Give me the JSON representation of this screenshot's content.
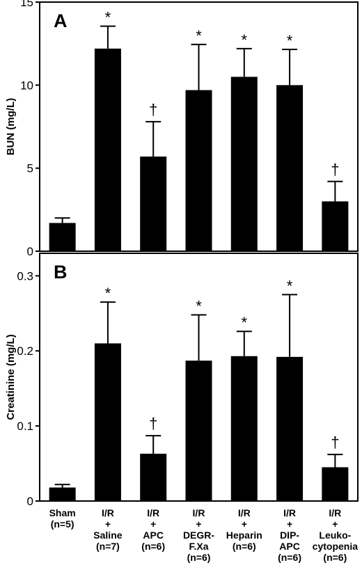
{
  "chart_data": [
    {
      "type": "bar",
      "panel": "A",
      "ylabel": "BUN (mg/L)",
      "ylim": [
        0,
        15
      ],
      "yticks": [
        0,
        5,
        10,
        15
      ],
      "categories": [
        "Sham (n=5)",
        "I/R + Saline (n=7)",
        "I/R + APC (n=6)",
        "I/R + DEGR-F.Xa (n=6)",
        "I/R + Heparin (n=6)",
        "I/R + DIP-APC (n=6)",
        "I/R + Leuko-cytopenia (n=6)"
      ],
      "values": [
        1.7,
        12.2,
        5.7,
        9.7,
        10.5,
        10.0,
        3.0
      ],
      "errors": [
        0.3,
        1.35,
        2.1,
        2.75,
        1.7,
        2.15,
        1.2
      ],
      "significance": [
        "",
        "*",
        "†",
        "*",
        "*",
        "*",
        "†"
      ]
    },
    {
      "type": "bar",
      "panel": "B",
      "ylabel": "Creatinine (mg/L)",
      "ylim": [
        0,
        0.33
      ],
      "yticks": [
        0,
        0.1,
        0.2,
        0.3
      ],
      "ytick_labels": [
        "0",
        "0.1",
        "0.2",
        "0.3"
      ],
      "categories": [
        "Sham (n=5)",
        "I/R + Saline (n=7)",
        "I/R + APC (n=6)",
        "I/R + DEGR-F.Xa (n=6)",
        "I/R + Heparin (n=6)",
        "I/R + DIP-APC (n=6)",
        "I/R + Leuko-cytopenia (n=6)"
      ],
      "values": [
        0.018,
        0.21,
        0.063,
        0.187,
        0.193,
        0.192,
        0.045
      ],
      "errors": [
        0.004,
        0.055,
        0.024,
        0.061,
        0.033,
        0.083,
        0.017
      ],
      "significance": [
        "",
        "*",
        "†",
        "*",
        "*",
        "*",
        "†"
      ]
    }
  ],
  "x_axis_labels": [
    [
      "Sham",
      "(n=5)"
    ],
    [
      "I/R",
      "+",
      "Saline",
      "(n=7)"
    ],
    [
      "I/R",
      "+",
      "APC",
      "(n=6)"
    ],
    [
      "I/R",
      "+",
      "DEGR-",
      "F.Xa",
      "(n=6)"
    ],
    [
      "I/R",
      "+",
      "Heparin",
      "(n=6)"
    ],
    [
      "I/R",
      "+",
      "DIP-",
      "APC",
      "(n=6)"
    ],
    [
      "I/R",
      "+",
      "Leuko-",
      "cytopenia",
      "(n=6)"
    ]
  ],
  "colors": {
    "bar": "#000000",
    "axis": "#000000",
    "background": "#ffffff"
  }
}
